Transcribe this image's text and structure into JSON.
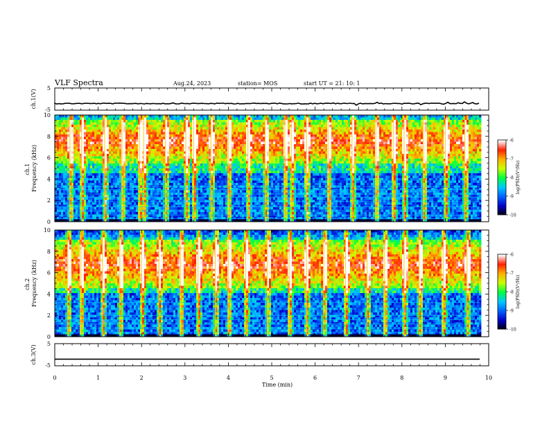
{
  "header": {
    "title": "VLF Spectra",
    "date": "Aug.24, 2023",
    "station": "station= MOS",
    "start": "start  UT  =   21: 10: 1"
  },
  "colorbar": {
    "label": "log(PSD)(V²/Hz)",
    "ticks": [
      "-6",
      "-7",
      "-8",
      "-9",
      "-10"
    ],
    "range": [
      -10,
      -6
    ],
    "colors": [
      "#000000",
      "#0000c8",
      "#0060ff",
      "#00c8ff",
      "#00ff40",
      "#c8ff00",
      "#ffb000",
      "#ff2000",
      "#ffffff"
    ]
  },
  "chart_data": [
    {
      "type": "line",
      "ylabel": "ch.1(V)",
      "ylim": [
        -5,
        5
      ],
      "yticks": [
        "5",
        "-5"
      ],
      "xlim": [
        0,
        10
      ],
      "series": [
        {
          "values": [
            -2,
            -2
          ]
        }
      ]
    },
    {
      "type": "heatmap",
      "ylabel": "ch.1\nFrequency (kHz)",
      "xlim": [
        0,
        10
      ],
      "ylim": [
        0,
        10
      ],
      "yticks": [
        "0",
        "2",
        "4",
        "6",
        "8",
        "10"
      ],
      "strong_band_khz": [
        5.5,
        9.5
      ],
      "background_band_khz": [
        0,
        4.5
      ],
      "narrowband_lines_khz": [
        0.3,
        0.6,
        1.0,
        1.4,
        1.9,
        2.3,
        2.6,
        3.0,
        3.3
      ],
      "sferic_times_min": [
        0.35,
        0.62,
        1.15,
        1.55,
        1.95,
        2.05,
        2.55,
        3.02,
        3.2,
        3.6,
        4.0,
        4.45,
        4.85,
        5.3,
        5.45,
        5.8,
        6.3,
        6.85,
        7.4,
        7.8,
        8.05,
        8.5,
        9.0,
        9.45
      ]
    },
    {
      "type": "heatmap",
      "ylabel": "ch.2\nFrequency (kHz)",
      "xlim": [
        0,
        10
      ],
      "ylim": [
        0,
        10
      ],
      "yticks": [
        "0",
        "2",
        "4",
        "6",
        "8",
        "10"
      ],
      "strong_band_khz": [
        4.5,
        9.0
      ],
      "background_band_khz": [
        0,
        4.0
      ],
      "narrowband_lines_khz": [
        0.4,
        0.8,
        1.2,
        1.6,
        2.0,
        2.6,
        3.2
      ],
      "sferic_times_min": [
        0.3,
        0.6,
        1.1,
        1.5,
        2.0,
        2.4,
        2.9,
        3.3,
        3.7,
        4.0,
        4.4,
        4.9,
        5.4,
        5.8,
        6.2,
        6.7,
        7.2,
        7.6,
        8.05,
        8.4,
        8.95,
        9.5
      ]
    },
    {
      "type": "line",
      "ylabel": "ch.3(V)",
      "ylim": [
        -5,
        5
      ],
      "yticks": [
        "5",
        "-5"
      ],
      "xlim": [
        0,
        10
      ],
      "xlabel": "Time  (min)",
      "xticks": [
        "0",
        "1",
        "2",
        "3",
        "4",
        "5",
        "6",
        "7",
        "8",
        "9",
        "10"
      ],
      "series": [
        {
          "values": [
            -2,
            -2
          ]
        }
      ]
    }
  ]
}
